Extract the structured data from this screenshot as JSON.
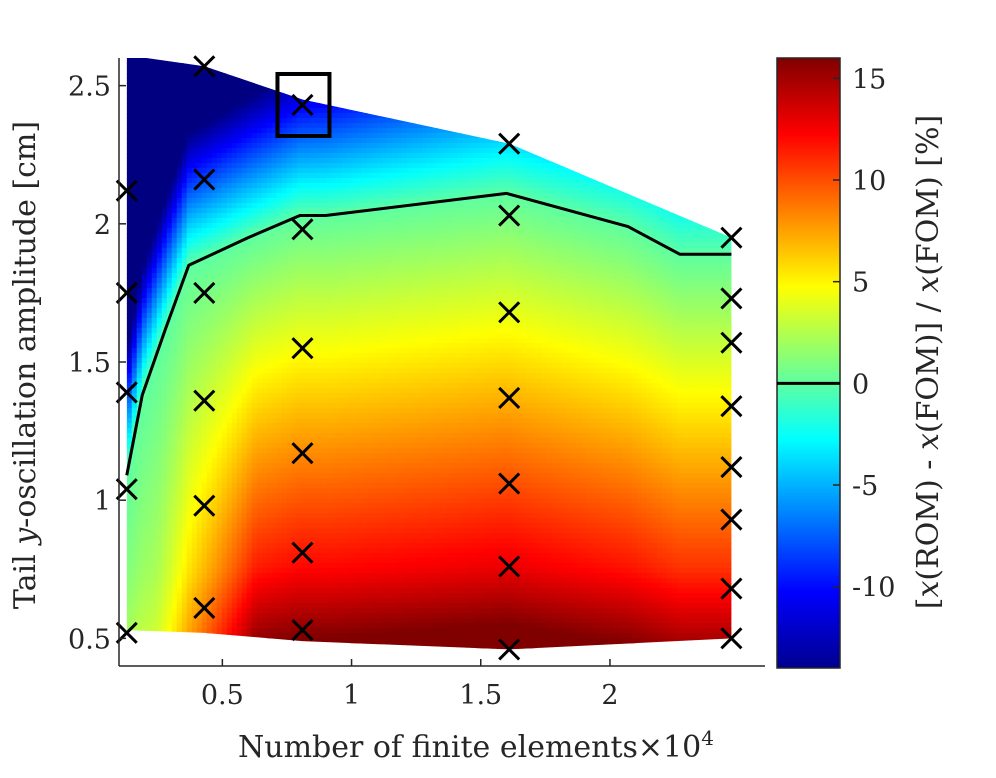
{
  "chart_data": {
    "type": "heatmap",
    "xlabel": "Number of finite elements",
    "x_exponent_label": "×10",
    "x_exponent_power": "4",
    "ylabel_pre": "Tail ",
    "ylabel_var": "y",
    "ylabel_post": "-oscillation amplitude [cm]",
    "colorbar_label": "[x(ROM) - x(FOM)] / x(FOM) [%]",
    "colorbar_label_parts": [
      "[",
      "x",
      "(ROM) - ",
      "x",
      "(FOM)] / ",
      "x",
      "(FOM) [%]"
    ],
    "colormap": "jet",
    "xlim": [
      0.1,
      2.6
    ],
    "ylim": [
      0.4,
      2.6
    ],
    "clim": [
      -14,
      16
    ],
    "x_ticks": [
      0.5,
      1,
      1.5,
      2
    ],
    "x_tick_labels": [
      "0.5",
      "1",
      "1.5",
      "2"
    ],
    "y_ticks": [
      0.5,
      1,
      1.5,
      2,
      2.5
    ],
    "y_tick_labels": [
      "0.5",
      "1",
      "1.5",
      "2",
      "2.5"
    ],
    "colorbar_ticks": [
      -10,
      -5,
      0,
      5,
      10,
      15
    ],
    "colorbar_tick_labels": [
      "-10",
      "-5",
      "0",
      "5",
      "10",
      "15"
    ],
    "zero_contour_level": 0,
    "samples": [
      {
        "x": 0.13,
        "y": 0.52
      },
      {
        "x": 0.13,
        "y": 1.04
      },
      {
        "x": 0.13,
        "y": 1.39
      },
      {
        "x": 0.13,
        "y": 1.75
      },
      {
        "x": 0.13,
        "y": 2.12
      },
      {
        "x": 0.43,
        "y": 0.61
      },
      {
        "x": 0.43,
        "y": 0.98
      },
      {
        "x": 0.43,
        "y": 1.36
      },
      {
        "x": 0.43,
        "y": 1.75
      },
      {
        "x": 0.43,
        "y": 2.16
      },
      {
        "x": 0.43,
        "y": 2.57
      },
      {
        "x": 0.81,
        "y": 0.53
      },
      {
        "x": 0.81,
        "y": 0.81
      },
      {
        "x": 0.81,
        "y": 1.17
      },
      {
        "x": 0.81,
        "y": 1.55
      },
      {
        "x": 0.81,
        "y": 1.98
      },
      {
        "x": 0.81,
        "y": 2.43
      },
      {
        "x": 1.61,
        "y": 0.46
      },
      {
        "x": 1.61,
        "y": 0.76
      },
      {
        "x": 1.61,
        "y": 1.06
      },
      {
        "x": 1.61,
        "y": 1.37
      },
      {
        "x": 1.61,
        "y": 1.68
      },
      {
        "x": 1.61,
        "y": 2.03
      },
      {
        "x": 1.61,
        "y": 2.29
      },
      {
        "x": 2.47,
        "y": 0.5
      },
      {
        "x": 2.47,
        "y": 0.68
      },
      {
        "x": 2.47,
        "y": 0.93
      },
      {
        "x": 2.47,
        "y": 1.12
      },
      {
        "x": 2.47,
        "y": 1.34
      },
      {
        "x": 2.47,
        "y": 1.57
      },
      {
        "x": 2.47,
        "y": 1.73
      },
      {
        "x": 2.47,
        "y": 1.95
      }
    ],
    "highlighted_sample": {
      "x": 0.81,
      "y": 2.43
    },
    "zero_contour": [
      {
        "x": 0.13,
        "y": 1.09
      },
      {
        "x": 0.19,
        "y": 1.38
      },
      {
        "x": 0.28,
        "y": 1.62
      },
      {
        "x": 0.37,
        "y": 1.85
      },
      {
        "x": 0.6,
        "y": 1.95
      },
      {
        "x": 0.8,
        "y": 2.03
      },
      {
        "x": 0.9,
        "y": 2.03
      },
      {
        "x": 1.6,
        "y": 2.11
      },
      {
        "x": 2.07,
        "y": 1.99
      },
      {
        "x": 2.27,
        "y": 1.89
      },
      {
        "x": 2.47,
        "y": 1.89
      }
    ],
    "domain_top": [
      {
        "x": 0.13,
        "y": 2.61
      },
      {
        "x": 0.43,
        "y": 2.57
      },
      {
        "x": 0.81,
        "y": 2.45
      },
      {
        "x": 1.61,
        "y": 2.29
      },
      {
        "x": 2.47,
        "y": 1.95
      }
    ],
    "domain_bottom": [
      {
        "x": 0.13,
        "y": 0.53
      },
      {
        "x": 0.43,
        "y": 0.52
      },
      {
        "x": 0.81,
        "y": 0.49
      },
      {
        "x": 1.61,
        "y": 0.46
      },
      {
        "x": 2.47,
        "y": 0.5
      }
    ]
  }
}
